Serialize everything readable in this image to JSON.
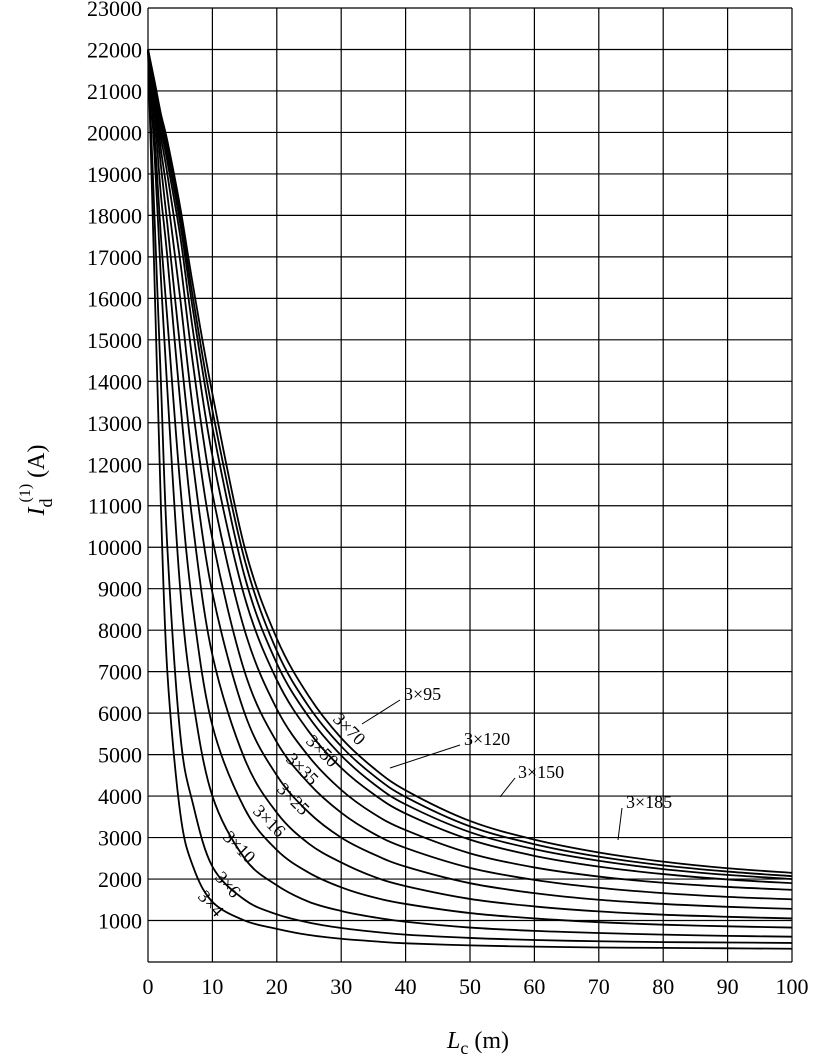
{
  "chart_data": {
    "type": "line",
    "xlabel_main": "L",
    "xlabel_sub": "c",
    "xlabel_unit": " (m)",
    "ylabel_main": "I",
    "ylabel_sub": "d",
    "ylabel_sup": "(1)",
    "ylabel_unit": " (A)",
    "xlim": [
      0,
      100
    ],
    "ylim": [
      0,
      23000
    ],
    "xticks": [
      0,
      10,
      20,
      30,
      40,
      50,
      60,
      70,
      80,
      90,
      100
    ],
    "yticks": [
      1000,
      2000,
      3000,
      4000,
      5000,
      6000,
      7000,
      8000,
      9000,
      10000,
      11000,
      12000,
      13000,
      14000,
      15000,
      16000,
      17000,
      18000,
      19000,
      20000,
      21000,
      22000,
      23000
    ],
    "grid": true,
    "x": [
      0,
      1,
      2,
      3,
      5,
      7,
      10,
      15,
      20,
      25,
      30,
      35,
      40,
      50,
      60,
      70,
      80,
      90,
      100
    ],
    "series": [
      {
        "name": "3×4",
        "values": [
          22000,
          16500,
          11000,
          7000,
          3600,
          2300,
          1450,
          1000,
          800,
          650,
          560,
          500,
          450,
          400,
          370,
          350,
          340,
          330,
          320
        ]
      },
      {
        "name": "3×6",
        "values": [
          22000,
          18000,
          14000,
          10000,
          5500,
          3800,
          2300,
          1500,
          1150,
          950,
          820,
          730,
          660,
          580,
          530,
          500,
          480,
          470,
          460
        ]
      },
      {
        "name": "3×10",
        "values": [
          22000,
          19500,
          16500,
          13800,
          9000,
          6300,
          4000,
          2500,
          1850,
          1450,
          1230,
          1080,
          970,
          830,
          750,
          700,
          660,
          630,
          610
        ]
      },
      {
        "name": "3×16",
        "values": [
          22000,
          20000,
          17500,
          15500,
          11500,
          8500,
          5700,
          3700,
          2700,
          2150,
          1800,
          1560,
          1400,
          1180,
          1050,
          960,
          900,
          860,
          830
        ]
      },
      {
        "name": "3×25",
        "values": [
          22000,
          20500,
          18500,
          17000,
          13500,
          10500,
          7400,
          4900,
          3600,
          2850,
          2400,
          2060,
          1830,
          1520,
          1340,
          1220,
          1140,
          1090,
          1050
        ]
      },
      {
        "name": "3×35",
        "values": [
          22000,
          20700,
          19200,
          17800,
          14800,
          12000,
          8900,
          6000,
          4500,
          3600,
          3000,
          2600,
          2300,
          1900,
          1660,
          1500,
          1400,
          1330,
          1280
        ]
      },
      {
        "name": "3×50",
        "values": [
          22000,
          20900,
          19600,
          18500,
          16000,
          13300,
          10200,
          7000,
          5300,
          4300,
          3600,
          3100,
          2750,
          2270,
          1980,
          1790,
          1660,
          1570,
          1510
        ]
      },
      {
        "name": "3×70",
        "values": [
          22000,
          21000,
          19900,
          19000,
          16900,
          14400,
          11300,
          8000,
          6100,
          4950,
          4150,
          3580,
          3180,
          2620,
          2280,
          2060,
          1910,
          1810,
          1740
        ]
      },
      {
        "name": "3×95",
        "values": [
          22000,
          21100,
          20100,
          19300,
          17500,
          15200,
          12200,
          8800,
          6800,
          5550,
          4680,
          4050,
          3580,
          2950,
          2560,
          2300,
          2120,
          1990,
          1900
        ]
      },
      {
        "name": "3×120",
        "values": [
          22000,
          21150,
          20250,
          19500,
          17800,
          15700,
          12900,
          9300,
          7200,
          5900,
          4980,
          4300,
          3800,
          3130,
          2720,
          2440,
          2240,
          2100,
          2000
        ]
      },
      {
        "name": "3×150",
        "values": [
          22000,
          21200,
          20350,
          19650,
          18000,
          16000,
          13300,
          9700,
          7500,
          6150,
          5200,
          4500,
          3980,
          3270,
          2840,
          2540,
          2330,
          2180,
          2070
        ]
      },
      {
        "name": "3×185",
        "values": [
          22000,
          21250,
          20450,
          19800,
          18200,
          16300,
          13700,
          10000,
          7800,
          6400,
          5400,
          4680,
          4140,
          3400,
          2950,
          2640,
          2420,
          2260,
          2150
        ]
      }
    ]
  }
}
